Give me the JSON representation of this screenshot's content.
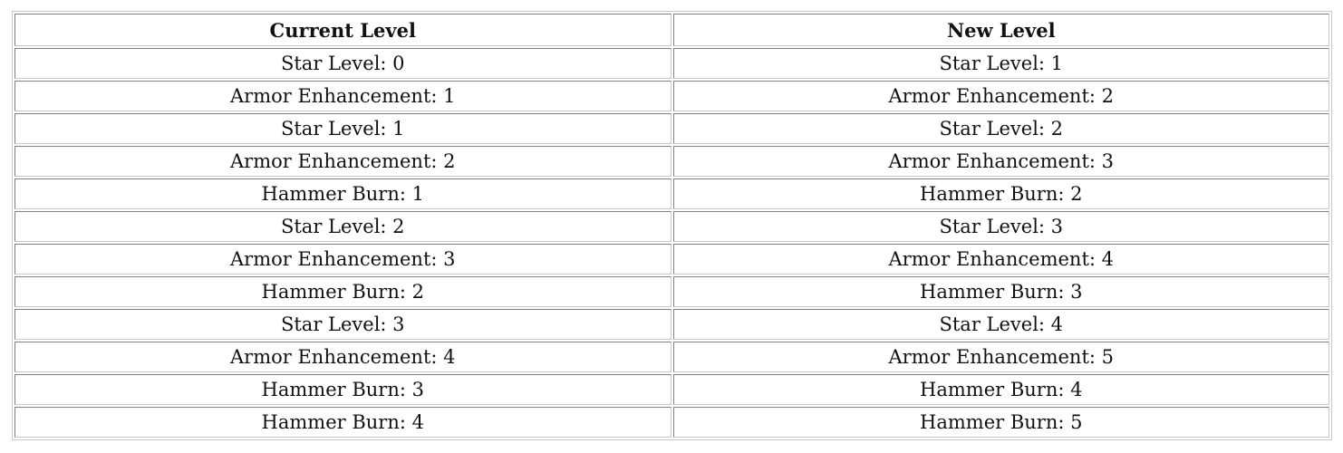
{
  "table": {
    "headers": [
      "Current Level",
      "New Level"
    ],
    "rows": [
      [
        "Star Level: 0",
        "Star Level: 1"
      ],
      [
        "Armor Enhancement: 1",
        "Armor Enhancement: 2"
      ],
      [
        "Star Level: 1",
        "Star Level: 2"
      ],
      [
        "Armor Enhancement: 2",
        "Armor Enhancement: 3"
      ],
      [
        "Hammer Burn: 1",
        "Hammer Burn: 2"
      ],
      [
        "Star Level: 2",
        "Star Level: 3"
      ],
      [
        "Armor Enhancement: 3",
        "Armor Enhancement: 4"
      ],
      [
        "Hammer Burn: 2",
        "Hammer Burn: 3"
      ],
      [
        "Star Level: 3",
        "Star Level: 4"
      ],
      [
        "Armor Enhancement: 4",
        "Armor Enhancement: 5"
      ],
      [
        "Hammer Burn: 3",
        "Hammer Burn: 4"
      ],
      [
        "Hammer Burn: 4",
        "Hammer Burn: 5"
      ]
    ]
  }
}
